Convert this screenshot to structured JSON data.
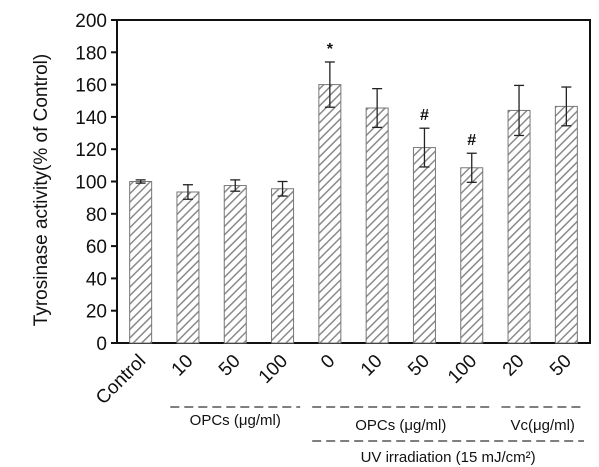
{
  "chart_data": {
    "type": "bar",
    "ylabel": "Tyrosinase activity(% of Control)",
    "ylim": [
      0,
      200
    ],
    "yticks": [
      0,
      20,
      40,
      60,
      80,
      100,
      120,
      140,
      160,
      180,
      200
    ],
    "categories": [
      "Control",
      "10",
      "50",
      "100",
      "0",
      "10",
      "50",
      "100",
      "20",
      "50"
    ],
    "values": [
      100,
      93.5,
      97.5,
      95.5,
      160,
      145.5,
      121,
      108.5,
      144,
      146.5
    ],
    "errors": [
      1,
      4.5,
      3.5,
      4.5,
      14,
      12,
      12,
      9,
      15.5,
      12
    ],
    "annotations": [
      "",
      "",
      "",
      "",
      "*",
      "",
      "#",
      "#",
      "",
      ""
    ],
    "bar_fill": "hatched",
    "groups": [
      {
        "label": "OPCs (μg/ml)",
        "categories": [
          "10",
          "50",
          "100"
        ]
      },
      {
        "label": "OPCs (μg/ml)",
        "categories": [
          "0",
          "10",
          "50",
          "100"
        ]
      },
      {
        "label": "Vc(μg/ml)",
        "categories": [
          "20",
          "50"
        ]
      },
      {
        "label": "UV irradiation (15 mJ/cm²)",
        "categories": [
          "0",
          "10",
          "50",
          "100",
          "20",
          "50"
        ]
      }
    ],
    "colors": {
      "bar_stroke": "#777777",
      "hatch": "#8a8a8a",
      "axis": "#111111"
    }
  }
}
